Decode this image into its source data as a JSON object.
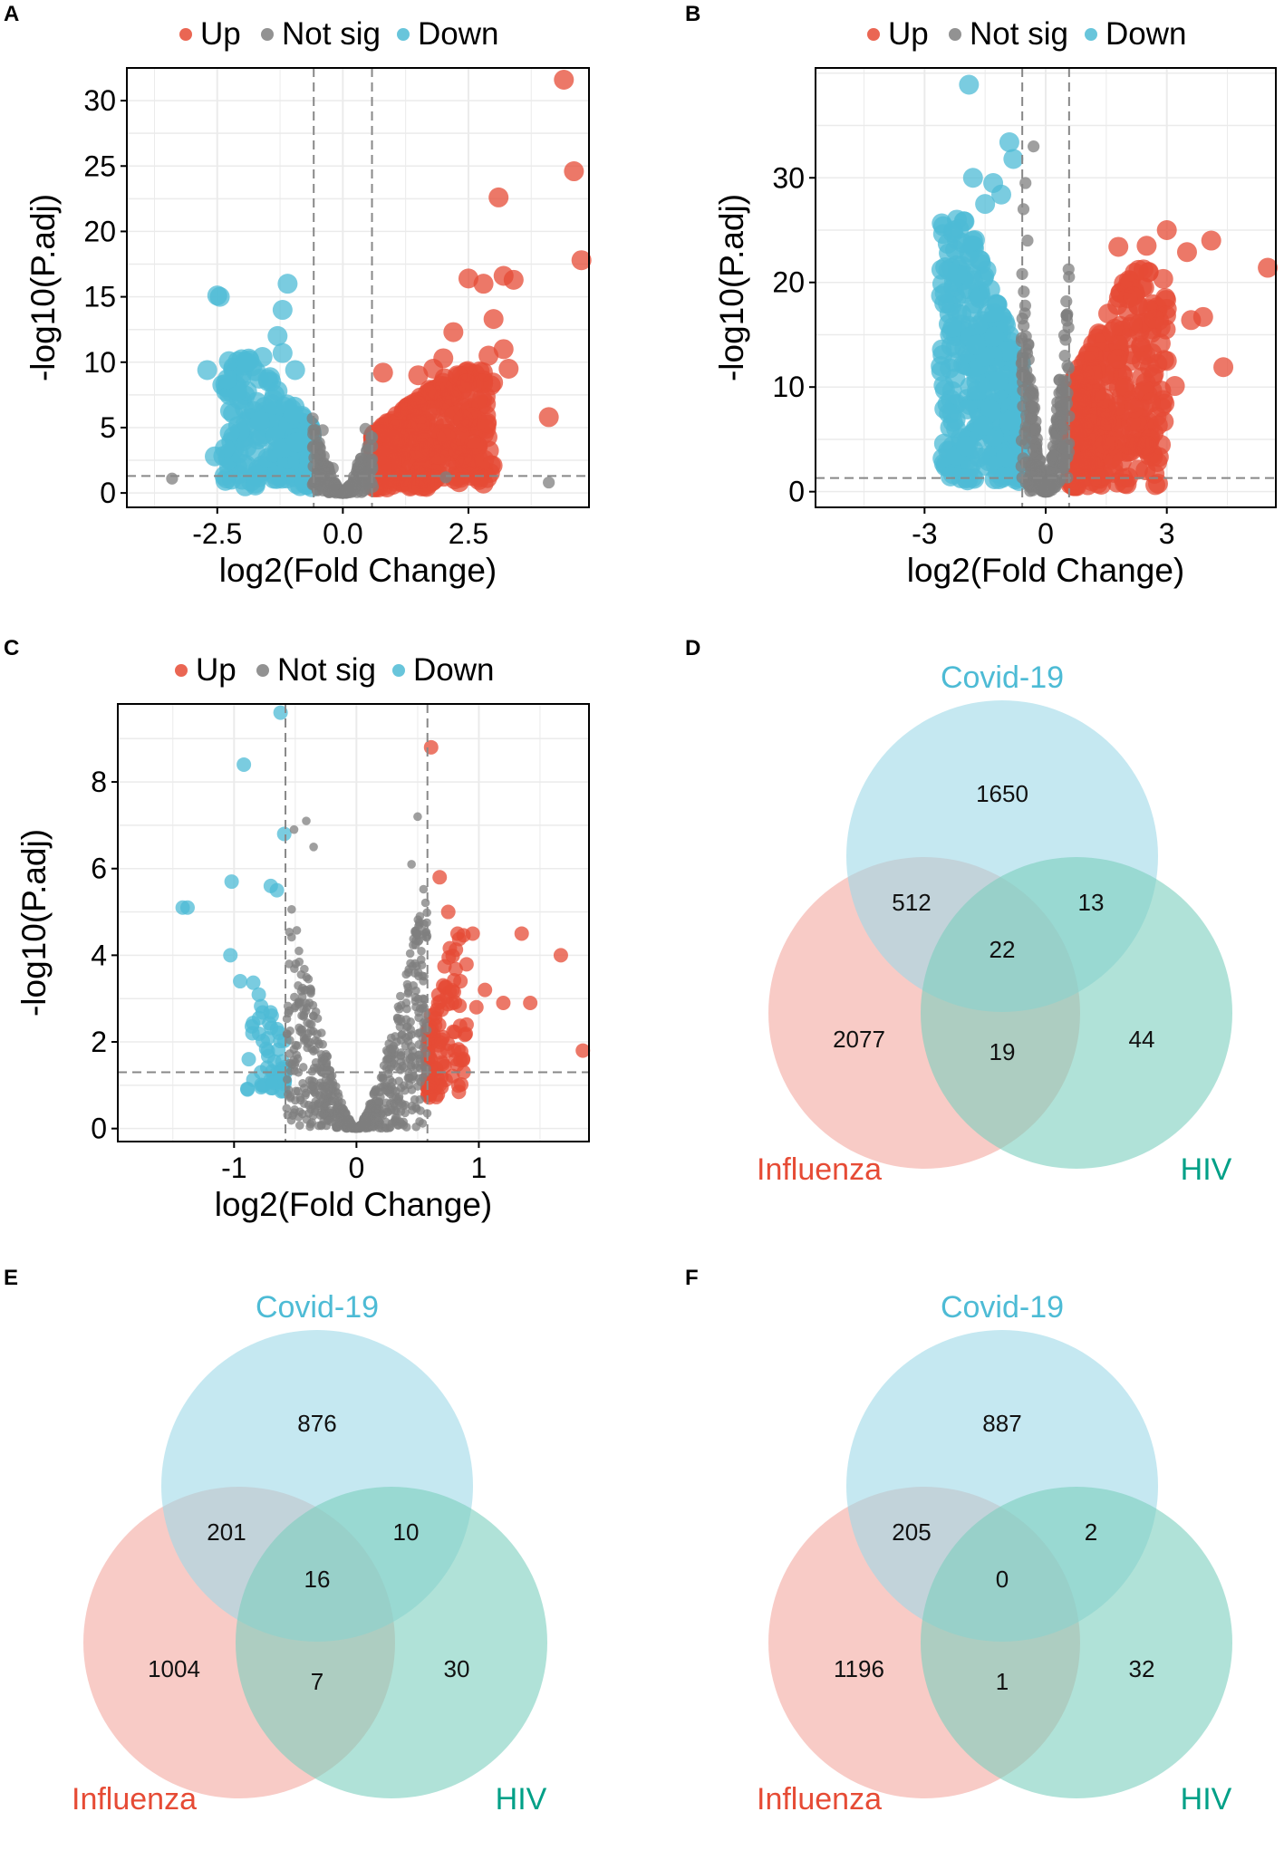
{
  "colors": {
    "up": "#E64B35",
    "down": "#4DBBD5",
    "ns": "#7F7F7F",
    "covid": "#9ED8E8",
    "influenza": "#F4A9A0",
    "hiv": "#7CCFBE",
    "covid_label": "#4DBBD5",
    "influenza_label": "#E64B35",
    "hiv_label": "#00A087"
  },
  "legend": {
    "up": "Up",
    "ns": "Not sig",
    "down": "Down"
  },
  "chart_data": [
    {
      "panel": "A",
      "type": "scatter",
      "title": "",
      "xlabel": "log2(Fold Change)",
      "ylabel": "-log10(P.adj)",
      "xlim": [
        -4.3,
        4.9
      ],
      "ylim": [
        -1.1,
        32.5
      ],
      "xticks": [
        -2.5,
        0.0,
        2.5
      ],
      "xtick_labels": [
        "-2.5",
        "0.0",
        "2.5"
      ],
      "yticks": [
        0,
        5,
        10,
        15,
        20,
        25,
        30
      ],
      "ytick_labels": [
        "0",
        "5",
        "10",
        "15",
        "20",
        "25",
        "30"
      ],
      "vlines": [
        -0.58,
        0.58
      ],
      "hline": 1.3,
      "series": [
        {
          "name": "Up",
          "points": [
            [
              4.4,
              31.6
            ],
            [
              4.6,
              24.6
            ],
            [
              4.75,
              17.8
            ],
            [
              3.1,
              22.6
            ],
            [
              2.5,
              16.4
            ],
            [
              2.8,
              16.0
            ],
            [
              3.2,
              16.6
            ],
            [
              3.4,
              16.3
            ],
            [
              3.0,
              13.3
            ],
            [
              3.2,
              11.0
            ],
            [
              2.9,
              10.5
            ],
            [
              3.3,
              9.5
            ],
            [
              4.1,
              5.8
            ],
            [
              2.2,
              12.3
            ],
            [
              2.0,
              10.3
            ],
            [
              1.8,
              9.5
            ],
            [
              1.5,
              9.0
            ],
            [
              0.8,
              9.2
            ]
          ]
        },
        {
          "name": "Down",
          "points": [
            [
              -2.5,
              15.1
            ],
            [
              -2.45,
              15.0
            ],
            [
              -1.1,
              16.0
            ],
            [
              -1.2,
              14.0
            ],
            [
              -1.3,
              12.0
            ],
            [
              -1.6,
              10.4
            ],
            [
              -1.2,
              10.7
            ],
            [
              -1.9,
              10.0
            ],
            [
              -2.3,
              8.7
            ],
            [
              -2.7,
              9.4
            ],
            [
              -2.25,
              4.6
            ],
            [
              -2.35,
              3.4
            ],
            [
              -2.55,
              2.8
            ],
            [
              -1.3,
              7.8
            ],
            [
              -0.95,
              9.4
            ]
          ]
        },
        {
          "name": "Not sig",
          "points": [
            [
              -3.4,
              1.1
            ],
            [
              4.1,
              0.8
            ],
            [
              2.05,
              1.2
            ],
            [
              -0.6,
              5.7
            ],
            [
              -0.4,
              4.8
            ],
            [
              0.45,
              4.9
            ],
            [
              -0.2,
              1.9
            ],
            [
              0.3,
              2.2
            ]
          ]
        }
      ],
      "clouds": [
        {
          "series": "Up",
          "x": [
            0.6,
            3.0
          ],
          "y": [
            0.4,
            9.5
          ],
          "count": 420,
          "shape": "up"
        },
        {
          "series": "Down",
          "x": [
            -2.4,
            -0.6
          ],
          "y": [
            0.4,
            10.5
          ],
          "count": 260,
          "shape": "down"
        },
        {
          "series": "Not sig",
          "x": [
            -0.6,
            0.6
          ],
          "y": [
            0.0,
            5.5
          ],
          "count": 220,
          "shape": "v"
        }
      ]
    },
    {
      "panel": "B",
      "type": "scatter",
      "title": "",
      "xlabel": "log2(Fold Change)",
      "ylabel": "-log10(P.adj)",
      "xlim": [
        -5.7,
        5.7
      ],
      "ylim": [
        -1.5,
        40.5
      ],
      "xticks": [
        -3,
        0,
        3
      ],
      "xtick_labels": [
        "-3",
        "0",
        "3"
      ],
      "yticks": [
        0,
        10,
        20,
        30
      ],
      "ytick_labels": [
        "0",
        "10",
        "20",
        "30"
      ],
      "vlines": [
        -0.58,
        0.58
      ],
      "hline": 1.3,
      "series": [
        {
          "name": "Up",
          "points": [
            [
              5.5,
              21.4
            ],
            [
              4.1,
              24.0
            ],
            [
              3.5,
              22.9
            ],
            [
              3.0,
              25.0
            ],
            [
              2.5,
              23.5
            ],
            [
              1.8,
              23.4
            ],
            [
              2.3,
              21.2
            ],
            [
              3.6,
              16.4
            ],
            [
              3.9,
              16.7
            ],
            [
              4.4,
              11.9
            ],
            [
              3.0,
              12.5
            ],
            [
              3.2,
              10.1
            ],
            [
              2.6,
              8.5
            ],
            [
              2.2,
              8.0
            ]
          ]
        },
        {
          "name": "Down",
          "points": [
            [
              -1.9,
              38.9
            ],
            [
              -0.9,
              33.4
            ],
            [
              -0.8,
              31.8
            ],
            [
              -1.8,
              30.0
            ],
            [
              -1.3,
              29.5
            ],
            [
              -1.1,
              28.4
            ],
            [
              -1.5,
              27.5
            ],
            [
              -2.2,
              26.0
            ],
            [
              -2.4,
              22.8
            ],
            [
              -1.8,
              24.0
            ],
            [
              -2.5,
              19.0
            ],
            [
              -2.3,
              15.7
            ],
            [
              -2.6,
              12.0
            ]
          ]
        },
        {
          "name": "Not sig",
          "points": [
            [
              -0.3,
              33.0
            ],
            [
              -0.5,
              29.5
            ],
            [
              -0.55,
              27.0
            ],
            [
              -0.45,
              24.0
            ]
          ]
        }
      ],
      "clouds": [
        {
          "series": "Up",
          "x": [
            0.6,
            3.0
          ],
          "y": [
            0.5,
            22.0
          ],
          "count": 420,
          "shape": "up"
        },
        {
          "series": "Down",
          "x": [
            -2.6,
            -0.6
          ],
          "y": [
            1.0,
            26.0
          ],
          "count": 420,
          "shape": "down"
        },
        {
          "series": "Not sig",
          "x": [
            -0.6,
            0.6
          ],
          "y": [
            0.0,
            24.0
          ],
          "count": 300,
          "shape": "v"
        }
      ]
    },
    {
      "panel": "C",
      "type": "scatter",
      "title": "",
      "xlabel": "log2(Fold Change)",
      "ylabel": "-log10(P.adj)",
      "xlim": [
        -1.95,
        1.9
      ],
      "ylim": [
        -0.3,
        9.8
      ],
      "xticks": [
        -1,
        0,
        1
      ],
      "xtick_labels": [
        "-1",
        "0",
        "1"
      ],
      "yticks": [
        0,
        2,
        4,
        6,
        8
      ],
      "ytick_labels": [
        "0",
        "2",
        "4",
        "6",
        "8"
      ],
      "vlines": [
        -0.58,
        0.58
      ],
      "hline": 1.3,
      "series": [
        {
          "name": "Up",
          "points": [
            [
              0.61,
              8.8
            ],
            [
              0.68,
              5.8
            ],
            [
              0.75,
              5.0
            ],
            [
              0.95,
              4.5
            ],
            [
              1.35,
              4.5
            ],
            [
              1.67,
              4.0
            ],
            [
              1.42,
              2.9
            ],
            [
              1.2,
              2.9
            ],
            [
              1.05,
              3.2
            ],
            [
              1.85,
              1.8
            ],
            [
              0.98,
              2.8
            ],
            [
              0.85,
              3.4
            ],
            [
              0.9,
              2.4
            ],
            [
              0.8,
              1.8
            ]
          ]
        },
        {
          "name": "Down",
          "points": [
            [
              -0.62,
              9.6
            ],
            [
              -0.92,
              8.4
            ],
            [
              -0.59,
              6.8
            ],
            [
              -1.02,
              5.7
            ],
            [
              -0.65,
              5.5
            ],
            [
              -0.7,
              5.6
            ],
            [
              -1.38,
              5.1
            ],
            [
              -1.42,
              5.1
            ],
            [
              -1.03,
              4.0
            ],
            [
              -0.95,
              3.4
            ],
            [
              -0.85,
              2.2
            ],
            [
              -0.88,
              1.6
            ],
            [
              -0.78,
              1.3
            ]
          ]
        },
        {
          "name": "Not sig",
          "points": [
            [
              -0.41,
              7.1
            ],
            [
              -0.51,
              6.9
            ],
            [
              0.5,
              7.2
            ],
            [
              -0.35,
              6.5
            ],
            [
              0.45,
              6.1
            ]
          ]
        }
      ],
      "clouds": [
        {
          "series": "Up",
          "x": [
            0.58,
            0.9
          ],
          "y": [
            0.7,
            4.5
          ],
          "count": 120,
          "shape": "up"
        },
        {
          "series": "Down",
          "x": [
            -0.9,
            -0.58
          ],
          "y": [
            0.8,
            3.5
          ],
          "count": 60,
          "shape": "down"
        },
        {
          "series": "Not sig",
          "x": [
            -0.58,
            0.58
          ],
          "y": [
            0.0,
            6.0
          ],
          "count": 700,
          "shape": "v"
        }
      ]
    },
    {
      "panel": "D",
      "type": "venn",
      "sets": [
        "Covid-19",
        "Influenza",
        "HIV"
      ],
      "values": {
        "covid_only": "1650",
        "influenza_only": "2077",
        "hiv_only": "44",
        "covid_influenza": "512",
        "covid_hiv": "13",
        "influenza_hiv": "19",
        "all": "22"
      }
    },
    {
      "panel": "E",
      "type": "venn",
      "sets": [
        "Covid-19",
        "Influenza",
        "HIV"
      ],
      "values": {
        "covid_only": "876",
        "influenza_only": "1004",
        "hiv_only": "30",
        "covid_influenza": "201",
        "covid_hiv": "10",
        "influenza_hiv": "7",
        "all": "16"
      }
    },
    {
      "panel": "F",
      "type": "venn",
      "sets": [
        "Covid-19",
        "Influenza",
        "HIV"
      ],
      "values": {
        "covid_only": "887",
        "influenza_only": "1196",
        "hiv_only": "32",
        "covid_influenza": "205",
        "covid_hiv": "2",
        "influenza_hiv": "1",
        "all": "0"
      }
    }
  ]
}
